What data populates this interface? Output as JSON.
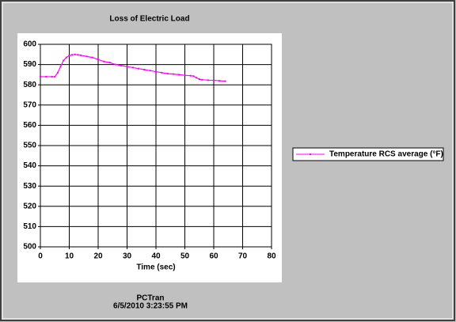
{
  "chart_data": {
    "type": "line",
    "title": "Loss of Electric Load",
    "x_label": "Time (sec)",
    "footer": [
      "PCTran",
      "6/5/2010 3:23:55 PM"
    ],
    "x": [
      0,
      2,
      4,
      5,
      6,
      7,
      8,
      9,
      10,
      11,
      12,
      13,
      14,
      16,
      18,
      20,
      22,
      24,
      26,
      28,
      30,
      32,
      34,
      36,
      38,
      40,
      42,
      44,
      46,
      48,
      50,
      52,
      53,
      54,
      55,
      56,
      58,
      60,
      62,
      64
    ],
    "series": [
      {
        "name": "Temperature RCS average (°F)",
        "color": "#ff00ff",
        "values": [
          584,
          584,
          584,
          584,
          586,
          589,
          592,
          593.5,
          594.5,
          594.8,
          595,
          594.8,
          594.6,
          594,
          593.5,
          592.5,
          591.5,
          591,
          590,
          589.5,
          589,
          588.5,
          588,
          587.5,
          587,
          586.5,
          586,
          585.5,
          585.3,
          585,
          584.7,
          584.5,
          584.3,
          583.5,
          582.8,
          582.5,
          582.3,
          582.2,
          582,
          581.8
        ]
      }
    ],
    "xlim": [
      0,
      80
    ],
    "xticks": [
      0,
      10,
      20,
      30,
      40,
      50,
      60,
      70,
      80
    ],
    "ylim": [
      500,
      600
    ],
    "yticks": [
      500,
      510,
      520,
      530,
      540,
      550,
      560,
      570,
      580,
      590,
      600
    ],
    "grid": true,
    "legend": "right"
  }
}
